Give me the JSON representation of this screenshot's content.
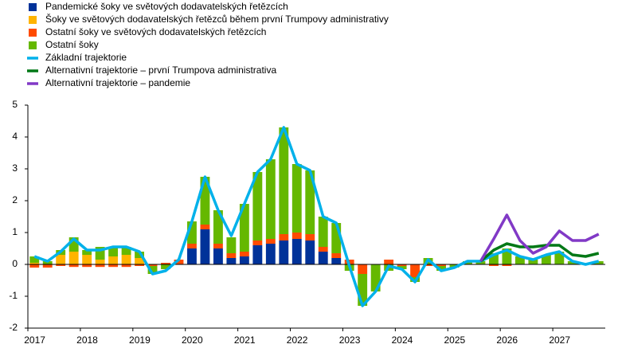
{
  "chart_data": {
    "type": "bar",
    "categories": [
      "2017",
      null,
      null,
      null,
      "2018",
      null,
      null,
      null,
      "2019",
      null,
      null,
      null,
      "2020",
      null,
      null,
      null,
      "2021",
      null,
      null,
      null,
      "2022",
      null,
      null,
      null,
      "2023",
      null,
      null,
      null,
      "2024",
      null,
      null,
      null,
      "2025",
      null,
      null,
      null,
      "2026",
      null,
      null,
      null,
      "2027",
      null,
      null,
      null
    ],
    "series": [
      {
        "name": "Pandemické šoky ve světových dodavatelských řetězcích",
        "type": "bar",
        "color": "#003299",
        "values": [
          0,
          0,
          0,
          0,
          0,
          0,
          0,
          0,
          0,
          0,
          0,
          0,
          0.5,
          1.1,
          0.5,
          0.2,
          0.25,
          0.6,
          0.65,
          0.75,
          0.8,
          0.75,
          0.4,
          0.2,
          0,
          0,
          0,
          0,
          0,
          0,
          0,
          0,
          0,
          0,
          0,
          0,
          0,
          0,
          0,
          0,
          0,
          0,
          0,
          0
        ]
      },
      {
        "name": "Šoky ve světových dodavatelských řetězců během první Trumpovy administrativy",
        "type": "bar",
        "color": "#ffb400",
        "values": [
          0.05,
          0,
          0.3,
          0.4,
          0.3,
          0.15,
          0.25,
          0.3,
          0.2,
          0,
          0,
          0,
          0,
          0,
          0,
          0,
          0,
          0,
          0,
          0,
          0,
          0,
          0,
          0,
          0,
          0,
          0,
          0,
          0,
          0,
          0,
          0,
          0,
          0,
          0,
          0,
          0,
          0,
          0,
          0,
          0,
          0,
          0,
          0
        ]
      },
      {
        "name": "Ostatní šoky ve světových dodavatelských řetězcích",
        "type": "bar",
        "color": "#ff4b00",
        "values": [
          -0.1,
          -0.1,
          -0.05,
          -0.08,
          -0.08,
          -0.08,
          -0.08,
          -0.08,
          -0.05,
          -0.05,
          0.05,
          0.15,
          0.15,
          0.15,
          0.15,
          0.15,
          0.15,
          0.15,
          0.15,
          0.2,
          0.2,
          0.2,
          0.15,
          0.15,
          0.15,
          -0.3,
          0,
          0.15,
          -0.05,
          -0.4,
          -0.05,
          -0.05,
          0,
          0,
          0,
          -0.05,
          -0.05,
          0,
          0,
          0,
          0,
          0,
          0,
          0
        ]
      },
      {
        "name": "Ostatní šoky",
        "type": "bar",
        "color": "#65b800",
        "values": [
          0.2,
          0.1,
          0.15,
          0.45,
          0.15,
          0.4,
          0.3,
          0.25,
          0.2,
          -0.25,
          -0.15,
          0,
          0.7,
          1.5,
          1.05,
          0.5,
          1.5,
          2.15,
          2.5,
          3.35,
          2.15,
          2.0,
          0.95,
          0.95,
          -0.2,
          -1.0,
          -0.85,
          -0.2,
          -0.1,
          -0.15,
          0.2,
          -0.15,
          -0.1,
          0.1,
          0.1,
          0.35,
          0.5,
          0.25,
          0.15,
          0.3,
          0.4,
          0.1,
          0,
          0.1
        ]
      },
      {
        "name": "Základní trajektorie",
        "type": "line",
        "color": "#00b1ea",
        "values": [
          0.25,
          0.1,
          0.4,
          0.8,
          0.45,
          0.45,
          0.55,
          0.55,
          0.4,
          -0.3,
          -0.2,
          0.15,
          1.35,
          2.75,
          1.7,
          0.9,
          1.9,
          2.9,
          3.3,
          4.3,
          3.15,
          2.95,
          1.5,
          1.3,
          -0.05,
          -1.3,
          -0.85,
          -0.05,
          -0.15,
          -0.55,
          0.15,
          -0.2,
          -0.1,
          0.1,
          0.1,
          0.3,
          0.45,
          0.25,
          0.15,
          0.3,
          0.4,
          0.1,
          0,
          0.1
        ]
      },
      {
        "name": "Alternativní trajektorie – první Trumpova administrativa",
        "type": "line",
        "color": "#007816",
        "values": [
          null,
          null,
          null,
          null,
          null,
          null,
          null,
          null,
          null,
          null,
          null,
          null,
          null,
          null,
          null,
          null,
          null,
          null,
          null,
          null,
          null,
          null,
          null,
          null,
          null,
          null,
          null,
          null,
          null,
          null,
          null,
          null,
          null,
          null,
          0.1,
          0.45,
          0.65,
          0.55,
          0.55,
          0.6,
          0.6,
          0.3,
          0.25,
          0.35
        ]
      },
      {
        "name": "Alternativní trajektorie – pandemie",
        "type": "line",
        "color": "#8139c6",
        "values": [
          null,
          null,
          null,
          null,
          null,
          null,
          null,
          null,
          null,
          null,
          null,
          null,
          null,
          null,
          null,
          null,
          null,
          null,
          null,
          null,
          null,
          null,
          null,
          null,
          null,
          null,
          null,
          null,
          null,
          null,
          null,
          null,
          null,
          null,
          0.1,
          0.8,
          1.55,
          0.75,
          0.35,
          0.55,
          1.05,
          0.75,
          0.75,
          0.95
        ]
      }
    ],
    "ylim": [
      -2,
      5
    ],
    "yticks": [
      -2,
      -1,
      0,
      1,
      2,
      3,
      4,
      5
    ]
  }
}
